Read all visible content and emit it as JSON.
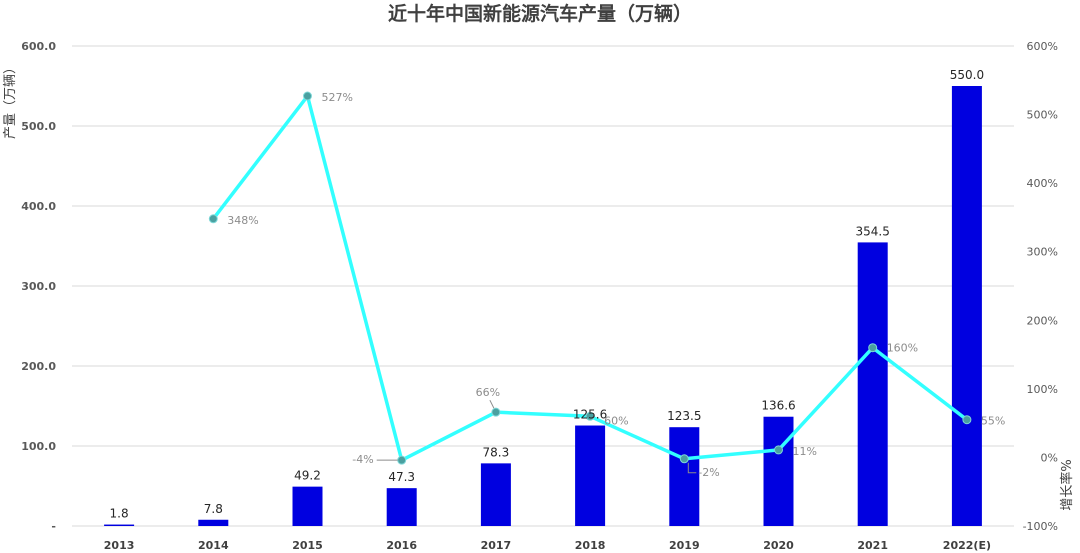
{
  "chart_data": {
    "type": "bar+line",
    "title": "近十年中国新能源汽车产量（万辆）",
    "categories": [
      "2013",
      "2014",
      "2015",
      "2016",
      "2017",
      "2018",
      "2019",
      "2020",
      "2021",
      "2022(E)"
    ],
    "bar_series": {
      "values": [
        1.8,
        7.8,
        49.2,
        47.3,
        78.3,
        125.6,
        123.5,
        136.6,
        354.5,
        550.0
      ],
      "labels": [
        "1.8",
        "7.8",
        "49.2",
        "47.3",
        "78.3",
        "125.6",
        "123.5",
        "136.6",
        "354.5",
        "550.0"
      ],
      "color": "#0000e0"
    },
    "line_series": {
      "values": [
        null,
        348,
        527,
        -4,
        66,
        60,
        -2,
        11,
        160,
        55
      ],
      "labels": [
        "",
        "348%",
        "527%",
        "-4%",
        "66%",
        "60%",
        "-2%",
        "11%",
        "160%",
        "55%"
      ],
      "color": "#33ffff",
      "marker_color": "#4aa0a0"
    },
    "ylabel_left": "产量（万辆）",
    "ylabel_right": "增长率%",
    "ylim_left": [
      0,
      600
    ],
    "ylim_right": [
      -100,
      600
    ],
    "yticks_left": [
      "-",
      "100.0",
      "200.0",
      "300.0",
      "400.0",
      "500.0",
      "600.0"
    ],
    "yticks_right": [
      "-100%",
      "0%",
      "100%",
      "200%",
      "300%",
      "400%",
      "500%",
      "600%"
    ],
    "grid": true
  }
}
